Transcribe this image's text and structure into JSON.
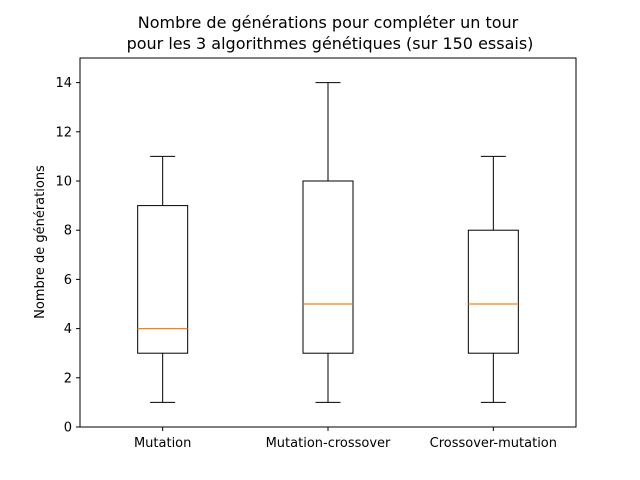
{
  "chart_data": {
    "type": "box",
    "title_line1": "Nombre de générations pour compléter un tour",
    "title_line2": "pour les 3 algorithmes génétiques (sur 150 essais)",
    "xlabel": "",
    "ylabel": "Nombre de générations",
    "ylim": [
      0,
      15
    ],
    "yticks": [
      0,
      2,
      4,
      6,
      8,
      10,
      12,
      14
    ],
    "categories": [
      "Mutation",
      "Mutation-crossover",
      "Crossover-mutation"
    ],
    "boxes": [
      {
        "whisker_low": 1,
        "q1": 3,
        "median": 4,
        "q3": 9,
        "whisker_high": 11
      },
      {
        "whisker_low": 1,
        "q1": 3,
        "median": 5,
        "q3": 10,
        "whisker_high": 14
      },
      {
        "whisker_low": 1,
        "q1": 3,
        "median": 5,
        "q3": 8,
        "whisker_high": 11
      }
    ],
    "grid": false,
    "colors": {
      "box": "#000000",
      "median": "#ff7f0e"
    }
  }
}
